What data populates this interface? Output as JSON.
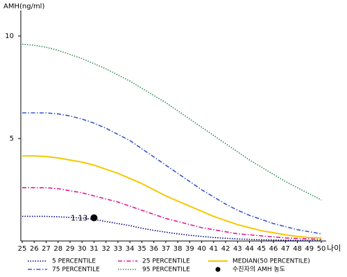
{
  "chart_data": {
    "type": "line",
    "y_label": "AMH(ng/ml)",
    "x_label": "나이",
    "x": [
      25,
      26,
      27,
      28,
      29,
      30,
      31,
      32,
      33,
      34,
      35,
      36,
      37,
      38,
      39,
      40,
      41,
      42,
      43,
      44,
      45,
      46,
      47,
      48,
      49,
      50
    ],
    "xlim": [
      25,
      50
    ],
    "xticks": [
      25,
      26,
      27,
      28,
      29,
      30,
      31,
      32,
      33,
      34,
      35,
      36,
      37,
      38,
      39,
      40,
      41,
      42,
      43,
      44,
      45,
      46,
      47,
      48,
      49,
      50
    ],
    "ylim": [
      0,
      11.25
    ],
    "yticks": [
      5,
      10
    ],
    "series": [
      {
        "name": "5 PERCENTILE",
        "color": "#000080",
        "linestyle": "dotted",
        "values": [
          1.2,
          1.2,
          1.2,
          1.18,
          1.15,
          1.12,
          1.05,
          0.95,
          0.85,
          0.75,
          0.62,
          0.52,
          0.43,
          0.35,
          0.28,
          0.22,
          0.17,
          0.13,
          0.1,
          0.08,
          0.06,
          0.05,
          0.04,
          0.03,
          0.02,
          0.02
        ]
      },
      {
        "name": "25 PERCENTILE",
        "color": "#e0158f",
        "linestyle": "dashdot",
        "values": [
          2.6,
          2.6,
          2.6,
          2.55,
          2.45,
          2.35,
          2.2,
          2.05,
          1.9,
          1.7,
          1.5,
          1.3,
          1.1,
          0.95,
          0.8,
          0.65,
          0.55,
          0.45,
          0.35,
          0.3,
          0.25,
          0.2,
          0.15,
          0.12,
          0.1,
          0.08
        ]
      },
      {
        "name": "MEDIAN(50 PERCENTILE)",
        "color": "#f5c800",
        "linestyle": "solid",
        "values": [
          4.15,
          4.15,
          4.12,
          4.05,
          3.95,
          3.85,
          3.7,
          3.5,
          3.3,
          3.05,
          2.8,
          2.5,
          2.2,
          1.95,
          1.7,
          1.45,
          1.2,
          1.0,
          0.8,
          0.65,
          0.5,
          0.4,
          0.3,
          0.22,
          0.17,
          0.15
        ]
      },
      {
        "name": "75 PERCENTILE",
        "color": "#3355cc",
        "linestyle": "dashdot",
        "values": [
          6.25,
          6.25,
          6.25,
          6.2,
          6.1,
          5.95,
          5.75,
          5.5,
          5.2,
          4.9,
          4.5,
          4.1,
          3.7,
          3.3,
          2.9,
          2.5,
          2.15,
          1.8,
          1.5,
          1.25,
          1.05,
          0.85,
          0.7,
          0.55,
          0.45,
          0.35
        ]
      },
      {
        "name": "95 PERCENTILE",
        "color": "#2e8b57",
        "linestyle": "dotted",
        "values": [
          9.6,
          9.55,
          9.45,
          9.3,
          9.1,
          8.9,
          8.65,
          8.4,
          8.1,
          7.8,
          7.45,
          7.1,
          6.75,
          6.35,
          5.95,
          5.55,
          5.15,
          4.75,
          4.35,
          3.95,
          3.6,
          3.25,
          2.9,
          2.6,
          2.3,
          2.0
        ]
      }
    ],
    "marker": {
      "name": "수진자의 AMH 농도",
      "x": 31,
      "y": 1.13,
      "color": "#000000"
    }
  }
}
